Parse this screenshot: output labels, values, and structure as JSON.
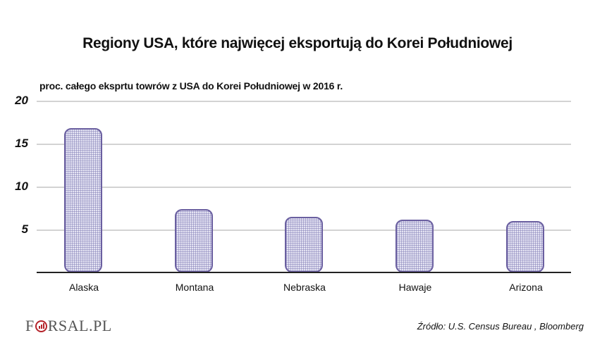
{
  "header": {
    "title": "Regiony USA, które najwięcej eksportują do Korei Południowej",
    "subtitle": "proc. całego eksprtu towrów z USA do Korei Południowej w 2016 r."
  },
  "chart_data": {
    "type": "bar",
    "title": "Regiony USA, które najwięcej eksportują do Korei Południowej",
    "subtitle": "proc. całego eksprtu towrów z USA do Korei Południowej w 2016 r.",
    "categories": [
      "Alaska",
      "Montana",
      "Nebraska",
      "Hawaje",
      "Arizona"
    ],
    "values": [
      16.9,
      7.4,
      6.5,
      6.2,
      6.0
    ],
    "xlabel": "",
    "ylabel": "proc. całego eksprtu towrów z USA do Korei Południowej w 2016 r.",
    "ylim": [
      0,
      20
    ],
    "yticks": [
      "5",
      "10",
      "15",
      "20"
    ],
    "grid": true,
    "legend": "none",
    "bar_color": "#e4e3f3",
    "bar_border_color": "#6a5fa0"
  },
  "footer": {
    "logo_text_left": "F",
    "logo_text_right": "RSAL.PL",
    "source": "Źródło:  U.S. Census Bureau , Bloomberg"
  }
}
